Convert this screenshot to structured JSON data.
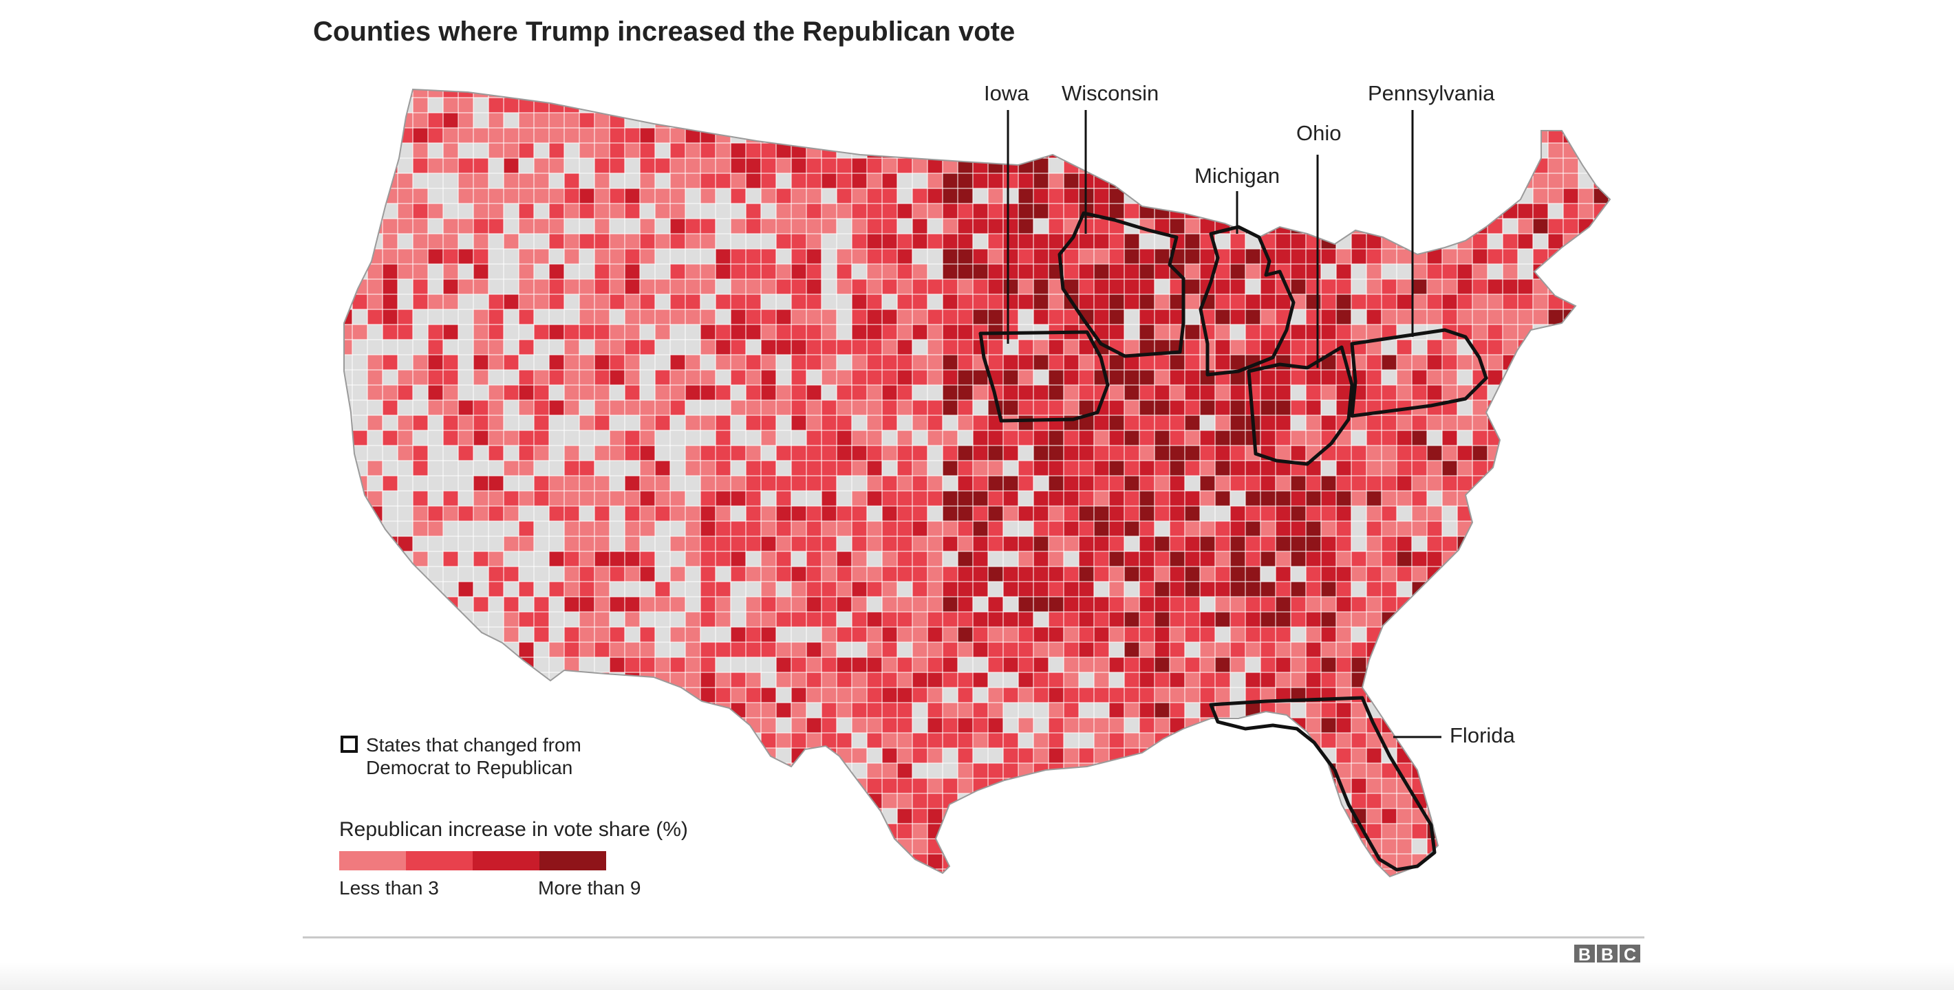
{
  "title": "Counties where Trump increased the Republican vote",
  "state_labels": {
    "iowa": "Iowa",
    "wisconsin": "Wisconsin",
    "michigan": "Michigan",
    "ohio": "Ohio",
    "pennsylvania": "Pennsylvania",
    "florida": "Florida"
  },
  "changed_legend": {
    "line1": "States that changed from",
    "line2": "Democrat to Republican"
  },
  "scale_legend": {
    "title": "Republican increase in vote share (%)",
    "low_label": "Less than 3",
    "high_label": "More than 9",
    "colors": [
      "#f07a7e",
      "#e8414d",
      "#c91c2a",
      "#8f1419"
    ]
  },
  "colors": {
    "no_increase": "#dedede",
    "county_border": "#ffffff",
    "state_outline": "#111111"
  },
  "logo": [
    "B",
    "B",
    "C"
  ]
}
